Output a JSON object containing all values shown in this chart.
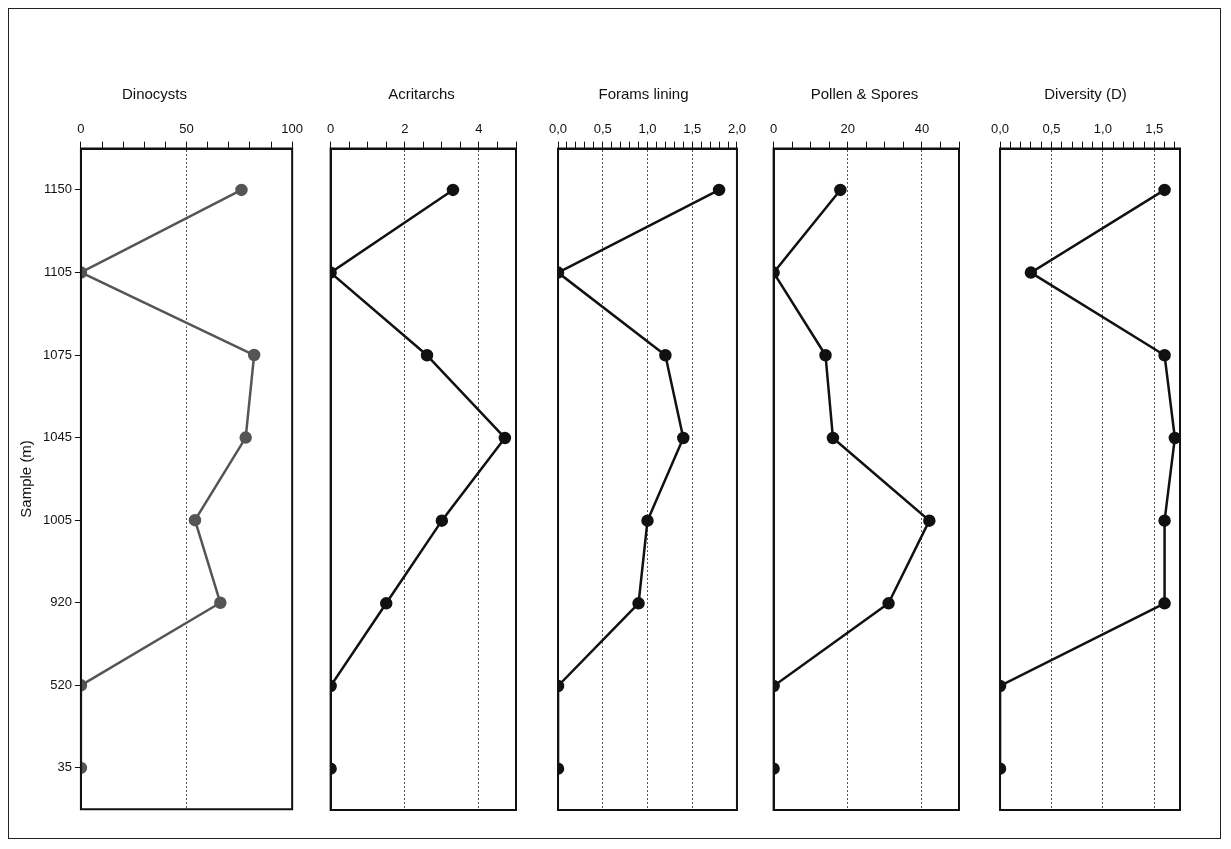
{
  "chart_data": [
    {
      "type": "line",
      "orientation": "horizontal",
      "title": "Dinocysts",
      "ylabel": "Sample (m)",
      "categories": [
        "1150",
        "1105",
        "1075",
        "1045",
        "1005",
        "920",
        "520",
        "35"
      ],
      "series": [
        {
          "color": "#555555",
          "values": [
            76,
            0,
            82,
            78,
            54,
            66,
            0,
            0
          ]
        }
      ],
      "xlim": [
        0,
        100
      ],
      "xticks": [
        0,
        {
          "value": 10,
          "label": null
        },
        {
          "value": 20,
          "label": null
        },
        {
          "value": 30,
          "label": null
        },
        {
          "value": 40,
          "label": null
        },
        50,
        {
          "value": 60,
          "label": null
        },
        {
          "value": 70,
          "label": null
        },
        {
          "value": 80,
          "label": null
        },
        {
          "value": 90,
          "label": null
        },
        100
      ],
      "grid": "x",
      "marker": "circle"
    },
    {
      "type": "line",
      "orientation": "horizontal",
      "title": "Acritarchs",
      "categories": [
        "1150",
        "1105",
        "1075",
        "1045",
        "1005",
        "920",
        "520",
        "35"
      ],
      "series": [
        {
          "color": "#111111",
          "values": [
            3.3,
            0,
            2.6,
            4.7,
            3.0,
            1.5,
            0,
            0
          ]
        }
      ],
      "xlim": [
        0,
        5
      ],
      "xticks": [
        0,
        {
          "value": 0.5,
          "label": null
        },
        {
          "value": 1,
          "label": null
        },
        {
          "value": 1.5,
          "label": null
        },
        2,
        {
          "value": 2.5,
          "label": null
        },
        {
          "value": 3,
          "label": null
        },
        {
          "value": 3.5,
          "label": null
        },
        4,
        {
          "value": 4.5,
          "label": null
        },
        {
          "value": 5,
          "label": null
        }
      ],
      "grid": "x",
      "marker": "circle",
      "tick_labels": "x"
    },
    {
      "type": "line",
      "orientation": "horizontal",
      "title": "Forams lining",
      "categories": [
        "1150",
        "1105",
        "1075",
        "1045",
        "1005",
        "920",
        "520",
        "35"
      ],
      "series": [
        {
          "color": "#111111",
          "values": [
            1.8,
            0,
            1.2,
            1.4,
            1.0,
            0.9,
            0,
            0
          ]
        }
      ],
      "xlim": [
        0,
        2
      ],
      "xticks": [
        {
          "value": 0,
          "label": "0,0"
        },
        {
          "value": 0.1,
          "label": null
        },
        {
          "value": 0.2,
          "label": null
        },
        {
          "value": 0.3,
          "label": null
        },
        {
          "value": 0.4,
          "label": null
        },
        {
          "value": 0.5,
          "label": "0,5"
        },
        {
          "value": 0.6,
          "label": null
        },
        {
          "value": 0.7,
          "label": null
        },
        {
          "value": 0.8,
          "label": null
        },
        {
          "value": 0.9,
          "label": null
        },
        {
          "value": 1,
          "label": "1,0"
        },
        {
          "value": 1.1,
          "label": null
        },
        {
          "value": 1.2,
          "label": null
        },
        {
          "value": 1.3,
          "label": null
        },
        {
          "value": 1.4,
          "label": null
        },
        {
          "value": 1.5,
          "label": "1,5"
        },
        {
          "value": 1.6,
          "label": null
        },
        {
          "value": 1.7,
          "label": null
        },
        {
          "value": 1.8,
          "label": null
        },
        {
          "value": 1.9,
          "label": null
        },
        {
          "value": 2,
          "label": "2,0"
        }
      ],
      "grid": "x",
      "marker": "circle",
      "tick_labels": "x"
    },
    {
      "type": "line",
      "orientation": "horizontal",
      "title": "Pollen & Spores",
      "categories": [
        "1150",
        "1105",
        "1075",
        "1045",
        "1005",
        "920",
        "520",
        "35"
      ],
      "series": [
        {
          "color": "#111111",
          "values": [
            18,
            0,
            14,
            16,
            42,
            31,
            0,
            0
          ]
        }
      ],
      "xlim": [
        0,
        50
      ],
      "xticks": [
        0,
        {
          "value": 5,
          "label": null
        },
        {
          "value": 10,
          "label": null
        },
        {
          "value": 15,
          "label": null
        },
        20,
        {
          "value": 25,
          "label": null
        },
        {
          "value": 30,
          "label": null
        },
        {
          "value": 35,
          "label": null
        },
        40,
        {
          "value": 45,
          "label": null
        },
        {
          "value": 50,
          "label": null
        }
      ],
      "grid": "x",
      "marker": "circle",
      "tick_labels": "x"
    },
    {
      "type": "line",
      "orientation": "horizontal",
      "title": "Diversity (D)",
      "categories": [
        "1150",
        "1105",
        "1075",
        "1045",
        "1005",
        "920",
        "520",
        "35"
      ],
      "series": [
        {
          "color": "#111111",
          "values": [
            1.6,
            0.3,
            1.6,
            1.7,
            1.6,
            1.6,
            0,
            0
          ]
        }
      ],
      "xlim": [
        0,
        1.75
      ],
      "xticks": [
        {
          "value": 0,
          "label": "0,0"
        },
        {
          "value": 0.1,
          "label": null
        },
        {
          "value": 0.2,
          "label": null
        },
        {
          "value": 0.3,
          "label": null
        },
        {
          "value": 0.4,
          "label": null
        },
        {
          "value": 0.5,
          "label": "0,5"
        },
        {
          "value": 0.6,
          "label": null
        },
        {
          "value": 0.7,
          "label": null
        },
        {
          "value": 0.8,
          "label": null
        },
        {
          "value": 0.9,
          "label": null
        },
        {
          "value": 1,
          "label": "1,0"
        },
        {
          "value": 1.1,
          "label": null
        },
        {
          "value": 1.2,
          "label": null
        },
        {
          "value": 1.3,
          "label": null
        },
        {
          "value": 1.4,
          "label": null
        },
        {
          "value": 1.5,
          "label": "1,5"
        },
        {
          "value": 1.6,
          "label": null
        },
        {
          "value": 1.7,
          "label": null
        }
      ],
      "grid": "x",
      "marker": "circle",
      "tick_labels": "x"
    }
  ]
}
